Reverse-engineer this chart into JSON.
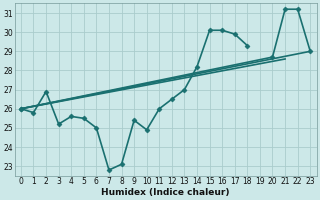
{
  "xlabel": "Humidex (Indice chaleur)",
  "background_color": "#cce8e8",
  "grid_color": "#aacccc",
  "line_color": "#1a7070",
  "xlim": [
    -0.5,
    23.5
  ],
  "ylim": [
    22.5,
    31.5
  ],
  "xticks": [
    0,
    1,
    2,
    3,
    4,
    5,
    6,
    7,
    8,
    9,
    10,
    11,
    12,
    13,
    14,
    15,
    16,
    17,
    18,
    19,
    20,
    21,
    22,
    23
  ],
  "yticks": [
    23,
    24,
    25,
    26,
    27,
    28,
    29,
    30,
    31
  ],
  "series": [
    {
      "x": [
        0,
        1,
        2,
        3,
        4,
        5,
        6,
        7,
        8,
        9,
        10,
        11,
        12,
        13,
        14,
        15,
        16,
        17,
        18
      ],
      "y": [
        26.0,
        25.8,
        26.9,
        25.2,
        25.6,
        25.5,
        25.0,
        22.8,
        23.1,
        25.4,
        24.9,
        26.0,
        26.5,
        27.0,
        28.2,
        30.1,
        30.1,
        29.9,
        29.3
      ],
      "marker": "D",
      "markersize": 2.5,
      "linewidth": 1.2
    },
    {
      "x": [
        0,
        23
      ],
      "y": [
        26.0,
        29.0
      ],
      "marker": null,
      "markersize": 0,
      "linewidth": 1.2
    },
    {
      "x": [
        0,
        21
      ],
      "y": [
        26.0,
        28.6
      ],
      "marker": null,
      "markersize": 0,
      "linewidth": 1.2
    },
    {
      "x": [
        0,
        20,
        21,
        22,
        23
      ],
      "y": [
        26.0,
        28.7,
        31.2,
        31.2,
        29.0
      ],
      "marker": "D",
      "markersize": 2.5,
      "linewidth": 1.2
    }
  ]
}
